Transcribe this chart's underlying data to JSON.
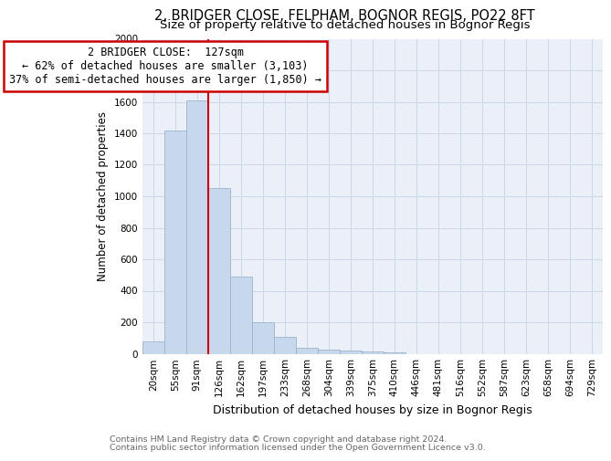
{
  "title1": "2, BRIDGER CLOSE, FELPHAM, BOGNOR REGIS, PO22 8FT",
  "title2": "Size of property relative to detached houses in Bognor Regis",
  "xlabel": "Distribution of detached houses by size in Bognor Regis",
  "ylabel": "Number of detached properties",
  "categories": [
    "20sqm",
    "55sqm",
    "91sqm",
    "126sqm",
    "162sqm",
    "197sqm",
    "233sqm",
    "268sqm",
    "304sqm",
    "339sqm",
    "375sqm",
    "410sqm",
    "446sqm",
    "481sqm",
    "516sqm",
    "552sqm",
    "587sqm",
    "623sqm",
    "658sqm",
    "694sqm",
    "729sqm"
  ],
  "values": [
    80,
    1420,
    1610,
    1050,
    490,
    200,
    110,
    40,
    25,
    18,
    12,
    8,
    0,
    0,
    0,
    0,
    0,
    0,
    0,
    0,
    0
  ],
  "bar_color": "#c8d8ec",
  "bar_edge_color": "#9ab4cc",
  "vline_color": "#cc0000",
  "annotation_text": "2 BRIDGER CLOSE:  127sqm\n← 62% of detached houses are smaller (3,103)\n37% of semi-detached houses are larger (1,850) →",
  "annotation_box_color": "#cc0000",
  "ylim": [
    0,
    2000
  ],
  "yticks": [
    0,
    200,
    400,
    600,
    800,
    1000,
    1200,
    1400,
    1600,
    1800,
    2000
  ],
  "grid_color": "#ccd8e8",
  "bg_color": "#eaeff8",
  "footer1": "Contains HM Land Registry data © Crown copyright and database right 2024.",
  "footer2": "Contains public sector information licensed under the Open Government Licence v3.0.",
  "title1_fontsize": 10.5,
  "title2_fontsize": 9.5,
  "xlabel_fontsize": 9,
  "ylabel_fontsize": 8.5,
  "tick_fontsize": 7.5,
  "footer_fontsize": 6.8,
  "ann_fontsize": 8.5
}
